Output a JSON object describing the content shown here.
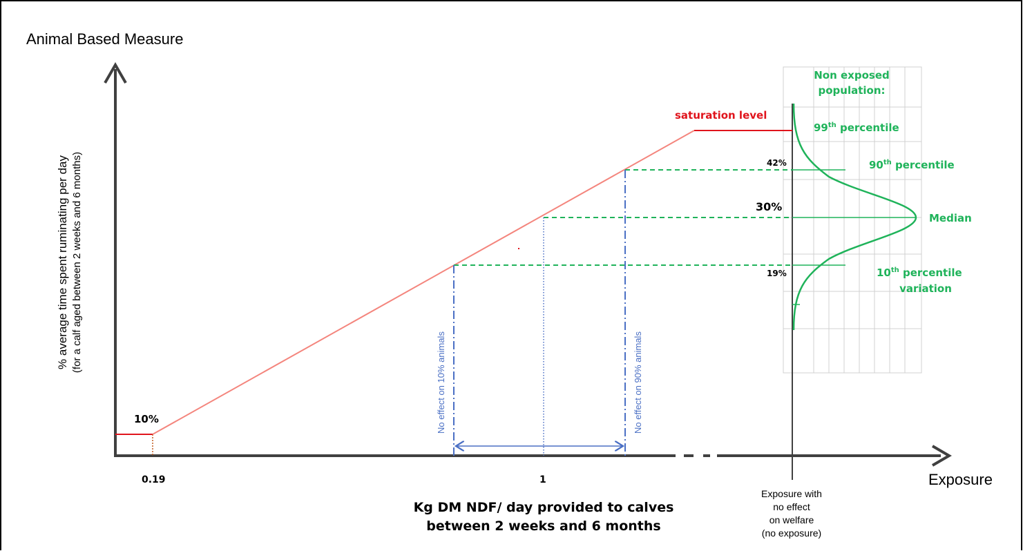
{
  "y_title": "Animal Based Measure",
  "y_label_line1": "% average time spent ruminating per day",
  "y_label_line2": "(for a calf aged between 2 weeks and 6 months)",
  "x_title": "Exposure",
  "x_label_line1": "Kg DM NDF/ day provided to calves",
  "x_label_line2": "between 2 weeks and 6 months",
  "x_ticks": {
    "low": "0.19",
    "mid": "1"
  },
  "y_low_value": "10%",
  "saturation_label": "saturation level",
  "no_effect_10": "No effect on 10% animals",
  "no_effect_90": "No effect on 90% animals",
  "population_title_line1": "Non exposed",
  "population_title_line2": "population:",
  "percentiles": {
    "p99_num": "99",
    "p99_sup": "th",
    "p99_rest": " percentile",
    "p90_num": "90",
    "p90_sup": "th",
    "p90_rest": " percentile",
    "median": "Median",
    "p10_num": "10",
    "p10_sup": "th",
    "p10_rest": " percentile",
    "p10_line2": "variation"
  },
  "values": {
    "v42": "42%",
    "v30": "30%",
    "v19": "19%"
  },
  "no_exposure_label": [
    "Exposure with",
    "no effect",
    "on welfare",
    "(no exposure)"
  ],
  "colors": {
    "axis": "#404040",
    "ramp": "#f4857d",
    "saturation": "#e0141c",
    "green": "#1fb35a",
    "blue": "#4a6fc4",
    "orange": "#c0581c",
    "grid": "#d0d0d0"
  }
}
